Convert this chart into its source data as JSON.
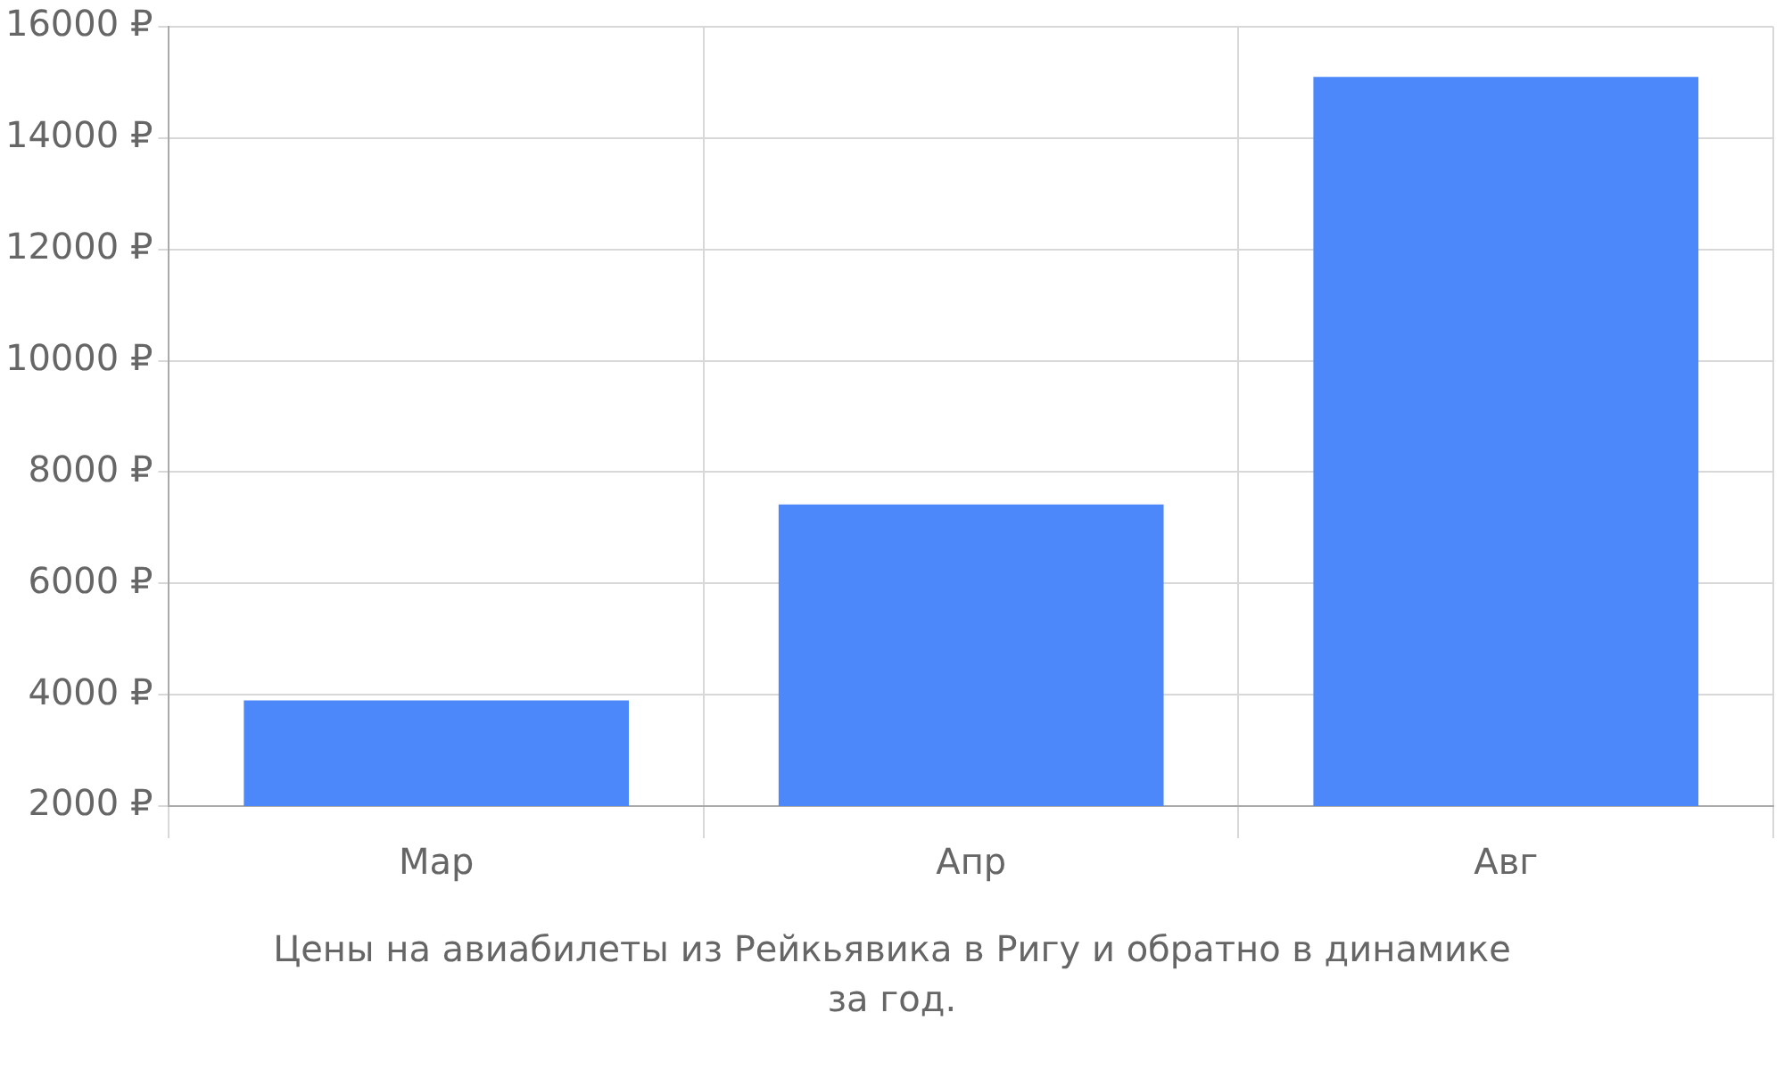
{
  "chart_data": {
    "type": "bar",
    "annotations": [
      "Цены на авиабилеты из Рейкьявика в Ригу и обратно в динамике за год."
    ],
    "categories": [
      "Мар",
      "Апр",
      "Авг"
    ],
    "values": [
      3900,
      7420,
      15100
    ],
    "color": "#4d88fb",
    "ylim": [
      2000,
      16000
    ],
    "yticks": [
      {
        "value": 2000,
        "label": "2000 ₽"
      },
      {
        "value": 4000,
        "label": "4000 ₽"
      },
      {
        "value": 6000,
        "label": "6000 ₽"
      },
      {
        "value": 8000,
        "label": "8000 ₽"
      },
      {
        "value": 10000,
        "label": "10000 ₽"
      },
      {
        "value": 12000,
        "label": "12000 ₽"
      },
      {
        "value": 14000,
        "label": "14000 ₽"
      },
      {
        "value": 16000,
        "label": "16000 ₽"
      }
    ],
    "grid": true,
    "legend": false
  }
}
